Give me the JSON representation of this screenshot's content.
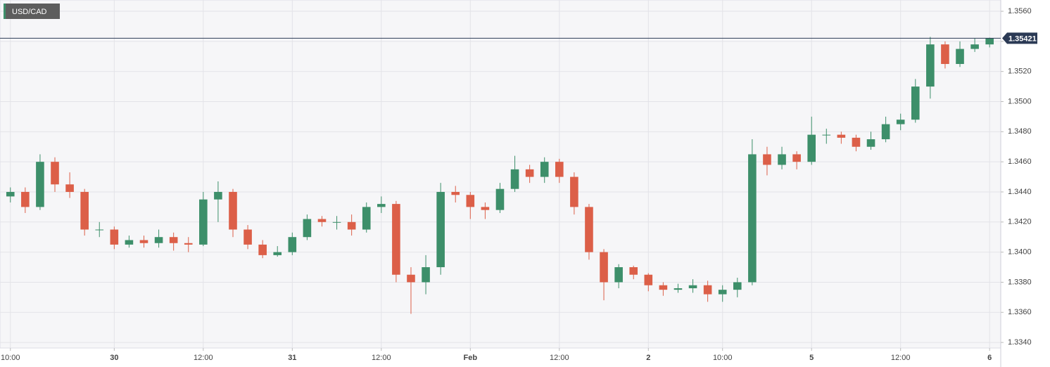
{
  "chart_data": {
    "type": "candlestick",
    "title": "USD/CAD",
    "x": [
      0,
      2,
      4,
      6,
      8,
      10,
      12,
      14,
      16,
      18,
      20,
      22,
      24,
      26,
      28,
      30,
      32,
      34,
      36,
      38,
      40,
      42,
      44,
      46,
      48,
      50,
      52,
      54,
      56,
      58,
      60,
      62,
      64,
      66,
      68,
      70,
      72,
      74,
      76,
      78,
      80,
      82,
      84,
      86,
      88,
      90,
      92,
      94,
      96,
      98,
      100,
      102,
      104,
      106,
      108,
      110,
      112,
      114,
      116,
      118,
      120,
      122,
      124,
      126,
      128,
      130,
      132
    ],
    "open": [
      1.3437,
      1.344,
      1.343,
      1.346,
      1.3445,
      1.344,
      1.3415,
      1.3415,
      1.3405,
      1.3408,
      1.3406,
      1.341,
      1.3406,
      1.3405,
      1.3435,
      1.344,
      1.3415,
      1.3405,
      1.3398,
      1.34,
      1.341,
      1.3422,
      1.342,
      1.342,
      1.3415,
      1.343,
      1.3432,
      1.3385,
      1.338,
      1.339,
      1.344,
      1.3438,
      1.343,
      1.3428,
      1.3442,
      1.3455,
      1.345,
      1.346,
      1.345,
      1.343,
      1.34,
      1.338,
      1.339,
      1.3385,
      1.3378,
      1.3375,
      1.3376,
      1.3378,
      1.3372,
      1.3375,
      1.338,
      1.3465,
      1.3458,
      1.3465,
      1.346,
      1.3478,
      1.3478,
      1.3476,
      1.347,
      1.3475,
      1.3485,
      1.3488,
      1.351,
      1.3538,
      1.3525,
      1.3535,
      1.3538
    ],
    "high": [
      1.3443,
      1.3443,
      1.3465,
      1.3463,
      1.3453,
      1.3442,
      1.342,
      1.3417,
      1.3411,
      1.3411,
      1.3415,
      1.3413,
      1.341,
      1.344,
      1.3447,
      1.3442,
      1.3418,
      1.3408,
      1.3404,
      1.3413,
      1.3425,
      1.3424,
      1.3424,
      1.3425,
      1.3433,
      1.3437,
      1.3434,
      1.339,
      1.3398,
      1.3446,
      1.3444,
      1.344,
      1.3433,
      1.3446,
      1.3464,
      1.3458,
      1.3463,
      1.3462,
      1.3453,
      1.3432,
      1.3402,
      1.3392,
      1.3391,
      1.3386,
      1.338,
      1.3379,
      1.3382,
      1.3381,
      1.3378,
      1.3383,
      1.3475,
      1.347,
      1.347,
      1.3467,
      1.349,
      1.3482,
      1.348,
      1.3478,
      1.348,
      1.349,
      1.3492,
      1.3515,
      1.3543,
      1.354,
      1.354,
      1.3542,
      1.35425
    ],
    "low": [
      1.3433,
      1.3426,
      1.3428,
      1.344,
      1.3436,
      1.3411,
      1.341,
      1.3402,
      1.3403,
      1.3403,
      1.3403,
      1.3401,
      1.34,
      1.3404,
      1.342,
      1.341,
      1.3402,
      1.3396,
      1.3397,
      1.3398,
      1.3408,
      1.3417,
      1.3415,
      1.3411,
      1.3413,
      1.3426,
      1.338,
      1.3359,
      1.3372,
      1.3385,
      1.3433,
      1.3422,
      1.3422,
      1.3426,
      1.344,
      1.3446,
      1.3446,
      1.3446,
      1.3425,
      1.3395,
      1.3368,
      1.3376,
      1.3382,
      1.3374,
      1.3371,
      1.3373,
      1.3373,
      1.3367,
      1.3367,
      1.337,
      1.3378,
      1.3451,
      1.3455,
      1.3455,
      1.3458,
      1.3472,
      1.3472,
      1.3467,
      1.3468,
      1.3473,
      1.3481,
      1.3486,
      1.3502,
      1.3522,
      1.3523,
      1.3533,
      1.3536
    ],
    "close": [
      1.344,
      1.343,
      1.346,
      1.3445,
      1.344,
      1.3415,
      1.3415,
      1.3405,
      1.3408,
      1.3406,
      1.341,
      1.3406,
      1.3405,
      1.3435,
      1.344,
      1.3415,
      1.3405,
      1.3398,
      1.34,
      1.341,
      1.3422,
      1.342,
      1.342,
      1.3415,
      1.343,
      1.3432,
      1.3385,
      1.338,
      1.339,
      1.344,
      1.3438,
      1.343,
      1.3428,
      1.3442,
      1.3455,
      1.345,
      1.346,
      1.345,
      1.343,
      1.34,
      1.338,
      1.339,
      1.3385,
      1.3378,
      1.3375,
      1.3376,
      1.3378,
      1.3372,
      1.3375,
      1.338,
      1.3465,
      1.3458,
      1.3465,
      1.346,
      1.3478,
      1.3478,
      1.3476,
      1.347,
      1.3475,
      1.3485,
      1.3488,
      1.351,
      1.3538,
      1.3525,
      1.3535,
      1.3538,
      1.35421
    ],
    "up_color": "#3d8f6a",
    "down_color": "#dc5f48",
    "last_price": 1.35421,
    "last_price_color": "#2b3a55",
    "xlim": [
      -1.4,
      133.5
    ],
    "ylim": [
      1.33363,
      1.35675
    ],
    "xticks": [
      {
        "value": 0,
        "label": "10:00"
      },
      {
        "value": 14,
        "label": "30"
      },
      {
        "value": 26,
        "label": "12:00"
      },
      {
        "value": 38,
        "label": "31"
      },
      {
        "value": 50,
        "label": "12:00"
      },
      {
        "value": 62,
        "label": "Feb"
      },
      {
        "value": 74,
        "label": "12:00"
      },
      {
        "value": 86,
        "label": "2"
      },
      {
        "value": 96,
        "label": "10:00"
      },
      {
        "value": 108,
        "label": "5"
      },
      {
        "value": 120,
        "label": "12:00"
      },
      {
        "value": 132,
        "label": "6"
      }
    ],
    "yticks": [
      {
        "value": 1.334,
        "label": "1.3340"
      },
      {
        "value": 1.336,
        "label": "1.3360"
      },
      {
        "value": 1.338,
        "label": "1.3380"
      },
      {
        "value": 1.34,
        "label": "1.3400"
      },
      {
        "value": 1.342,
        "label": "1.3420"
      },
      {
        "value": 1.344,
        "label": "1.3440"
      },
      {
        "value": 1.346,
        "label": "1.3460"
      },
      {
        "value": 1.348,
        "label": "1.3480"
      },
      {
        "value": 1.35,
        "label": "1.3500"
      },
      {
        "value": 1.352,
        "label": "1.3520"
      },
      {
        "value": 1.354,
        "label": "1.3540"
      },
      {
        "value": 1.356,
        "label": "1.3560"
      }
    ],
    "grid": true
  }
}
